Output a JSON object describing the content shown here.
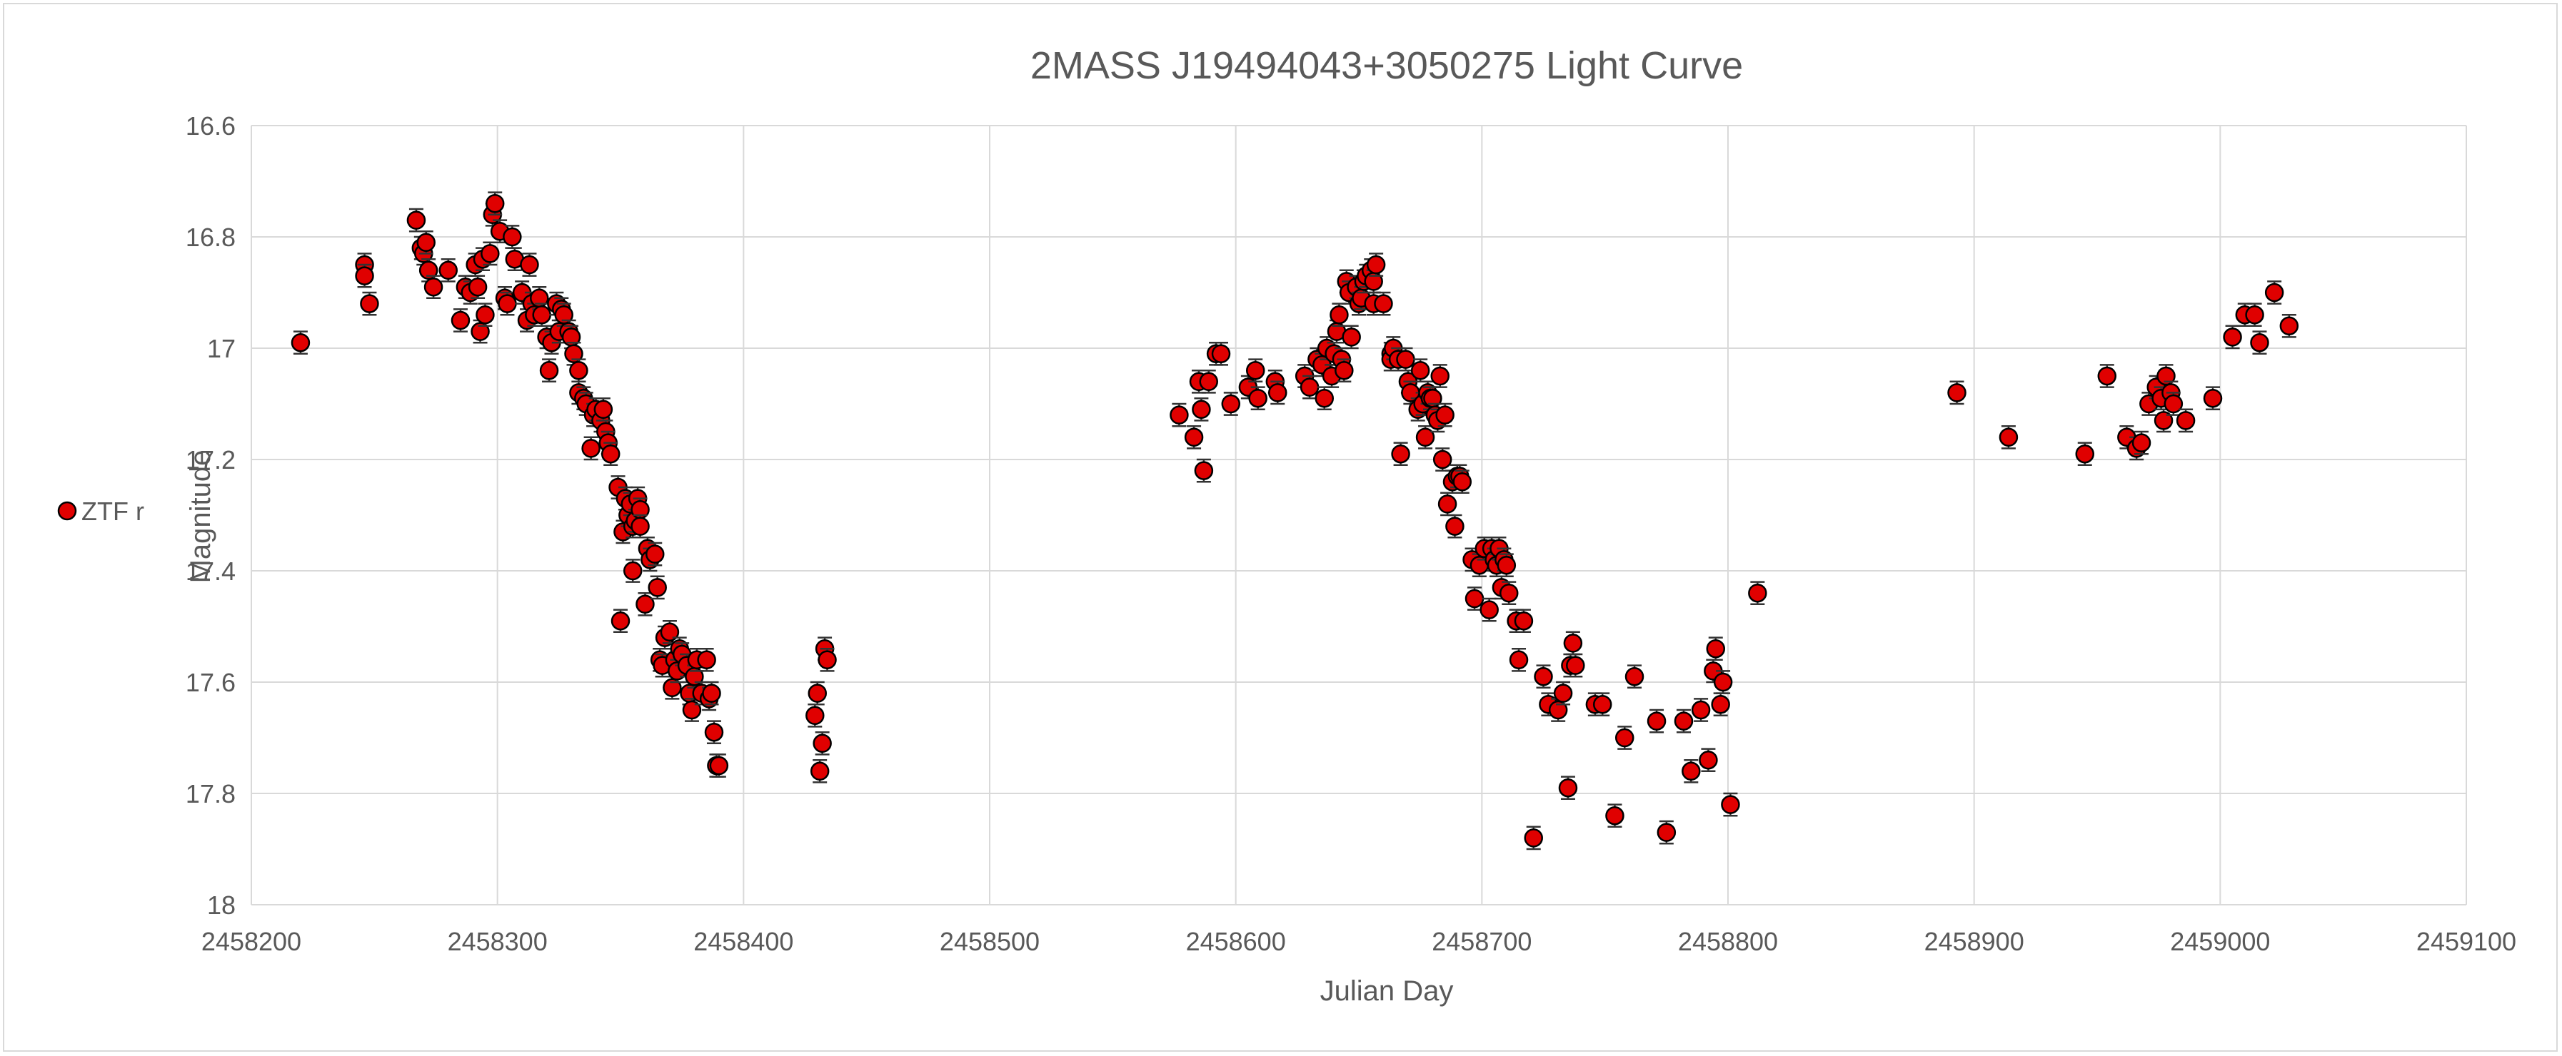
{
  "chart_data": {
    "type": "scatter",
    "title": "2MASS J19494043+3050275 Light Curve",
    "xlabel": "Julian Day",
    "ylabel": "Magnitude",
    "xlim": [
      2458200,
      2459100
    ],
    "ylim": [
      16.6,
      18
    ],
    "y_reversed": true,
    "x_ticks": [
      "2458200",
      "2458300",
      "2458400",
      "2458500",
      "2458600",
      "2458700",
      "2458800",
      "2458900",
      "2459000",
      "2459100"
    ],
    "y_ticks": [
      "16.6",
      "16.8",
      "17",
      "17.2",
      "17.4",
      "17.6",
      "17.8",
      "18"
    ],
    "grid": true,
    "legend_position": "left",
    "error_bar": 0.02,
    "marker_color": "#e00000",
    "marker_edge_color": "#000000",
    "series": [
      {
        "name": "ZTF r",
        "points": [
          [
            2458220,
            16.99
          ],
          [
            2458246,
            16.85
          ],
          [
            2458246,
            16.87
          ],
          [
            2458248,
            16.92
          ],
          [
            2458267,
            16.77
          ],
          [
            2458269,
            16.82
          ],
          [
            2458270,
            16.83
          ],
          [
            2458271,
            16.81
          ],
          [
            2458272,
            16.86
          ],
          [
            2458274,
            16.89
          ],
          [
            2458280,
            16.86
          ],
          [
            2458285,
            16.95
          ],
          [
            2458287,
            16.89
          ],
          [
            2458289,
            16.9
          ],
          [
            2458291,
            16.85
          ],
          [
            2458292,
            16.89
          ],
          [
            2458293,
            16.97
          ],
          [
            2458294,
            16.84
          ],
          [
            2458295,
            16.94
          ],
          [
            2458297,
            16.83
          ],
          [
            2458298,
            16.76
          ],
          [
            2458299,
            16.74
          ],
          [
            2458301,
            16.79
          ],
          [
            2458303,
            16.91
          ],
          [
            2458304,
            16.92
          ],
          [
            2458306,
            16.8
          ],
          [
            2458307,
            16.84
          ],
          [
            2458310,
            16.9
          ],
          [
            2458312,
            16.95
          ],
          [
            2458313,
            16.85
          ],
          [
            2458314,
            16.92
          ],
          [
            2458315,
            16.94
          ],
          [
            2458317,
            16.91
          ],
          [
            2458318,
            16.94
          ],
          [
            2458320,
            16.98
          ],
          [
            2458321,
            17.04
          ],
          [
            2458322,
            16.99
          ],
          [
            2458324,
            16.92
          ],
          [
            2458325,
            16.97
          ],
          [
            2458326,
            16.93
          ],
          [
            2458327,
            16.94
          ],
          [
            2458329,
            16.97
          ],
          [
            2458330,
            16.98
          ],
          [
            2458331,
            17.01
          ],
          [
            2458333,
            17.04
          ],
          [
            2458333,
            17.08
          ],
          [
            2458335,
            17.09
          ],
          [
            2458336,
            17.1
          ],
          [
            2458338,
            17.18
          ],
          [
            2458339,
            17.12
          ],
          [
            2458340,
            17.11
          ],
          [
            2458342,
            17.13
          ],
          [
            2458343,
            17.11
          ],
          [
            2458344,
            17.15
          ],
          [
            2458345,
            17.17
          ],
          [
            2458346,
            17.19
          ],
          [
            2458349,
            17.25
          ],
          [
            2458350,
            17.49
          ],
          [
            2458351,
            17.33
          ],
          [
            2458352,
            17.27
          ],
          [
            2458353,
            17.3
          ],
          [
            2458354,
            17.28
          ],
          [
            2458355,
            17.32
          ],
          [
            2458355,
            17.4
          ],
          [
            2458356,
            17.31
          ],
          [
            2458357,
            17.27
          ],
          [
            2458358,
            17.29
          ],
          [
            2458358,
            17.32
          ],
          [
            2458360,
            17.46
          ],
          [
            2458361,
            17.36
          ],
          [
            2458362,
            17.38
          ],
          [
            2458364,
            17.37
          ],
          [
            2458365,
            17.43
          ],
          [
            2458366,
            17.56
          ],
          [
            2458367,
            17.57
          ],
          [
            2458368,
            17.52
          ],
          [
            2458370,
            17.51
          ],
          [
            2458371,
            17.61
          ],
          [
            2458372,
            17.56
          ],
          [
            2458373,
            17.58
          ],
          [
            2458374,
            17.54
          ],
          [
            2458375,
            17.55
          ],
          [
            2458377,
            17.57
          ],
          [
            2458378,
            17.62
          ],
          [
            2458379,
            17.65
          ],
          [
            2458380,
            17.59
          ],
          [
            2458381,
            17.56
          ],
          [
            2458383,
            17.62
          ],
          [
            2458385,
            17.56
          ],
          [
            2458386,
            17.63
          ],
          [
            2458387,
            17.62
          ],
          [
            2458388,
            17.69
          ],
          [
            2458389,
            17.75
          ],
          [
            2458390,
            17.75
          ],
          [
            2458429,
            17.66
          ],
          [
            2458430,
            17.62
          ],
          [
            2458431,
            17.76
          ],
          [
            2458432,
            17.71
          ],
          [
            2458433,
            17.54
          ],
          [
            2458434,
            17.56
          ],
          [
            2458577,
            17.12
          ],
          [
            2458583,
            17.16
          ],
          [
            2458585,
            17.06
          ],
          [
            2458586,
            17.11
          ],
          [
            2458587,
            17.22
          ],
          [
            2458589,
            17.06
          ],
          [
            2458592,
            17.01
          ],
          [
            2458594,
            17.01
          ],
          [
            2458598,
            17.1
          ],
          [
            2458605,
            17.07
          ],
          [
            2458608,
            17.04
          ],
          [
            2458609,
            17.09
          ],
          [
            2458616,
            17.06
          ],
          [
            2458617,
            17.08
          ],
          [
            2458628,
            17.05
          ],
          [
            2458630,
            17.07
          ],
          [
            2458633,
            17.02
          ],
          [
            2458635,
            17.03
          ],
          [
            2458636,
            17.09
          ],
          [
            2458637,
            17.0
          ],
          [
            2458639,
            17.05
          ],
          [
            2458640,
            17.01
          ],
          [
            2458641,
            16.97
          ],
          [
            2458642,
            16.94
          ],
          [
            2458643,
            17.02
          ],
          [
            2458644,
            17.04
          ],
          [
            2458645,
            16.88
          ],
          [
            2458646,
            16.9
          ],
          [
            2458647,
            16.98
          ],
          [
            2458649,
            16.89
          ],
          [
            2458650,
            16.92
          ],
          [
            2458651,
            16.91
          ],
          [
            2458652,
            16.88
          ],
          [
            2458653,
            16.87
          ],
          [
            2458655,
            16.86
          ],
          [
            2458656,
            16.92
          ],
          [
            2458656,
            16.88
          ],
          [
            2458657,
            16.85
          ],
          [
            2458660,
            16.92
          ],
          [
            2458663,
            17.01
          ],
          [
            2458663,
            17.02
          ],
          [
            2458664,
            17.0
          ],
          [
            2458666,
            17.02
          ],
          [
            2458667,
            17.19
          ],
          [
            2458669,
            17.02
          ],
          [
            2458670,
            17.06
          ],
          [
            2458671,
            17.08
          ],
          [
            2458674,
            17.11
          ],
          [
            2458675,
            17.04
          ],
          [
            2458676,
            17.1
          ],
          [
            2458677,
            17.16
          ],
          [
            2458678,
            17.08
          ],
          [
            2458679,
            17.09
          ],
          [
            2458680,
            17.09
          ],
          [
            2458681,
            17.12
          ],
          [
            2458682,
            17.13
          ],
          [
            2458683,
            17.05
          ],
          [
            2458684,
            17.2
          ],
          [
            2458685,
            17.12
          ],
          [
            2458686,
            17.28
          ],
          [
            2458688,
            17.24
          ],
          [
            2458689,
            17.32
          ],
          [
            2458690,
            17.23
          ],
          [
            2458691,
            17.23
          ],
          [
            2458692,
            17.24
          ],
          [
            2458696,
            17.38
          ],
          [
            2458697,
            17.45
          ],
          [
            2458699,
            17.39
          ],
          [
            2458701,
            17.36
          ],
          [
            2458703,
            17.47
          ],
          [
            2458704,
            17.36
          ],
          [
            2458705,
            17.38
          ],
          [
            2458706,
            17.39
          ],
          [
            2458707,
            17.36
          ],
          [
            2458708,
            17.43
          ],
          [
            2458709,
            17.38
          ],
          [
            2458710,
            17.39
          ],
          [
            2458711,
            17.44
          ],
          [
            2458714,
            17.49
          ],
          [
            2458715,
            17.56
          ],
          [
            2458717,
            17.49
          ],
          [
            2458721,
            17.88
          ],
          [
            2458725,
            17.59
          ],
          [
            2458727,
            17.64
          ],
          [
            2458731,
            17.65
          ],
          [
            2458733,
            17.62
          ],
          [
            2458735,
            17.79
          ],
          [
            2458736,
            17.57
          ],
          [
            2458737,
            17.53
          ],
          [
            2458738,
            17.57
          ],
          [
            2458746,
            17.64
          ],
          [
            2458749,
            17.64
          ],
          [
            2458754,
            17.84
          ],
          [
            2458758,
            17.7
          ],
          [
            2458762,
            17.59
          ],
          [
            2458771,
            17.67
          ],
          [
            2458775,
            17.87
          ],
          [
            2458782,
            17.67
          ],
          [
            2458785,
            17.76
          ],
          [
            2458789,
            17.65
          ],
          [
            2458792,
            17.74
          ],
          [
            2458794,
            17.58
          ],
          [
            2458795,
            17.54
          ],
          [
            2458797,
            17.64
          ],
          [
            2458798,
            17.6
          ],
          [
            2458801,
            17.82
          ],
          [
            2458812,
            17.44
          ],
          [
            2458893,
            17.08
          ],
          [
            2458914,
            17.16
          ],
          [
            2458945,
            17.19
          ],
          [
            2458954,
            17.05
          ],
          [
            2458962,
            17.16
          ],
          [
            2458966,
            17.18
          ],
          [
            2458968,
            17.17
          ],
          [
            2458971,
            17.1
          ],
          [
            2458974,
            17.07
          ],
          [
            2458976,
            17.09
          ],
          [
            2458977,
            17.13
          ],
          [
            2458978,
            17.05
          ],
          [
            2458980,
            17.08
          ],
          [
            2458981,
            17.1
          ],
          [
            2458986,
            17.13
          ],
          [
            2458997,
            17.09
          ],
          [
            2459005,
            16.98
          ],
          [
            2459010,
            16.94
          ],
          [
            2459014,
            16.94
          ],
          [
            2459016,
            16.99
          ],
          [
            2459022,
            16.9
          ],
          [
            2459028,
            16.96
          ]
        ]
      }
    ]
  }
}
